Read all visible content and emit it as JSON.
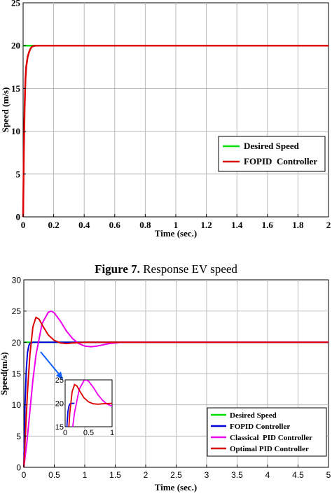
{
  "caption": {
    "label": "Figure 7.",
    "text": " Response EV speed"
  },
  "chart_data": [
    {
      "type": "line",
      "title": "",
      "xlabel": "Time (sec.)",
      "ylabel": "Speed (m/s)",
      "xlim": [
        0,
        2
      ],
      "ylim": [
        0,
        25
      ],
      "x_ticks": [
        "0",
        "0.2",
        "0.4",
        "0.6",
        "0.8",
        "1",
        "1.2",
        "1.4",
        "1.6",
        "1.8",
        "2"
      ],
      "y_ticks": [
        "0",
        "5",
        "10",
        "15",
        "20",
        "25"
      ],
      "grid": true,
      "legend_position": "center-right",
      "series": [
        {
          "name": "Desired Speed",
          "color": "#00dd00",
          "x": [
            0,
            2
          ],
          "y": [
            20,
            20
          ]
        },
        {
          "name": "FOPID  Controller",
          "color": "#dd0000",
          "x": [
            0,
            0.005,
            0.01,
            0.015,
            0.02,
            0.03,
            0.04,
            0.05,
            0.06,
            0.08,
            0.1,
            0.2,
            1,
            2
          ],
          "y": [
            0,
            8,
            13,
            16,
            17.5,
            18.7,
            19.3,
            19.7,
            19.9,
            20,
            20,
            20,
            20,
            20
          ]
        }
      ]
    },
    {
      "type": "line",
      "title": "",
      "xlabel": "Time (sec.)",
      "ylabel": "Speed(m/s)",
      "xlim": [
        0,
        5
      ],
      "ylim": [
        0,
        30
      ],
      "x_ticks": [
        "0",
        "0.5",
        "1",
        "1.5",
        "2",
        "2.5",
        "3",
        "3.5",
        "4",
        "4.5",
        "5"
      ],
      "y_ticks": [
        "0",
        "5",
        "10",
        "15",
        "20",
        "25",
        "30"
      ],
      "grid": true,
      "legend_position": "bottom-right",
      "series": [
        {
          "name": "Desired Speed",
          "color": "#00dd00",
          "x": [
            0,
            5
          ],
          "y": [
            20,
            20
          ]
        },
        {
          "name": "FOPID Controller",
          "color": "#0000dd",
          "x": [
            0,
            0.02,
            0.04,
            0.06,
            0.08,
            0.1,
            0.15,
            0.2,
            5
          ],
          "y": [
            0,
            10,
            15.5,
            18.3,
            19.4,
            19.85,
            20,
            20,
            20
          ]
        },
        {
          "name": "Classical  PID Controller",
          "color": "#ee00ee",
          "x": [
            0,
            0.05,
            0.1,
            0.15,
            0.2,
            0.3,
            0.4,
            0.45,
            0.5,
            0.6,
            0.7,
            0.8,
            0.9,
            1.0,
            1.1,
            1.2,
            1.4,
            1.6,
            1.8,
            2.0,
            5
          ],
          "y": [
            0,
            4,
            9,
            14,
            18,
            23,
            24.8,
            25,
            24.7,
            23.4,
            21.8,
            20.6,
            19.8,
            19.4,
            19.3,
            19.4,
            19.8,
            20,
            20,
            20,
            20
          ]
        },
        {
          "name": "Optimal PID Controller",
          "color": "#dd0000",
          "x": [
            0,
            0.03,
            0.06,
            0.1,
            0.15,
            0.2,
            0.25,
            0.3,
            0.4,
            0.5,
            0.6,
            0.7,
            0.8,
            1.0,
            1.2,
            5
          ],
          "y": [
            0,
            6,
            12,
            18,
            22.5,
            24,
            23.7,
            22.8,
            21.2,
            20.3,
            19.9,
            19.8,
            19.9,
            20,
            20,
            20
          ]
        }
      ],
      "inset": {
        "xlim": [
          0,
          1
        ],
        "ylim": [
          15,
          25
        ],
        "x_ticks": [
          "0",
          "0.5",
          "1"
        ],
        "y_ticks": [
          "15",
          "20",
          "25"
        ]
      }
    }
  ]
}
